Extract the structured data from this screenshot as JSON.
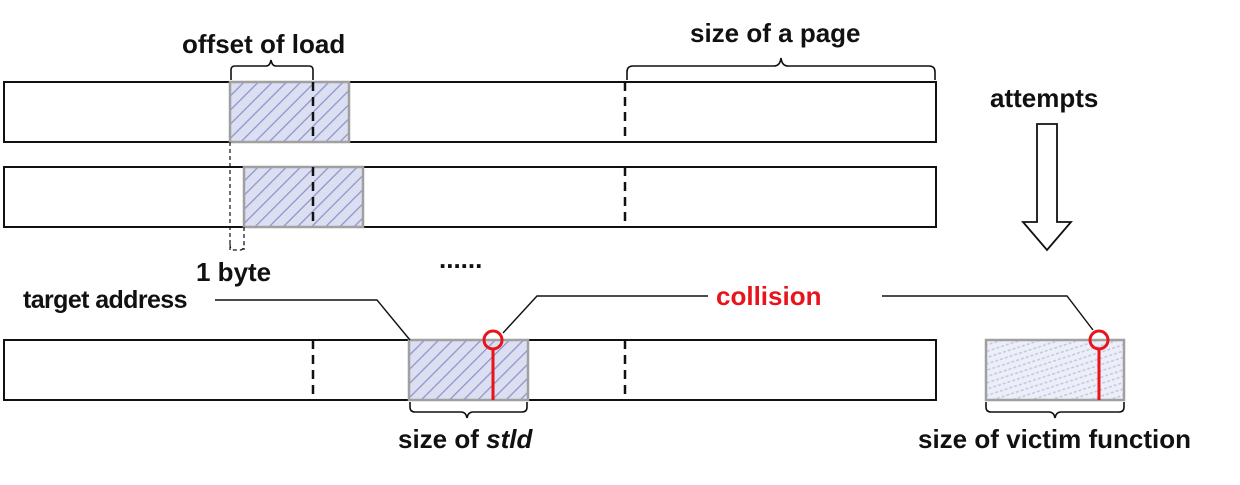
{
  "labels": {
    "offset_of_load": "offset of load",
    "size_of_a_page": "size of a page",
    "attempts": "attempts",
    "one_byte": "1 byte",
    "ellipsis": "......",
    "target_address": "target address",
    "collision": "collision",
    "size_of_stld_prefix": "size of ",
    "size_of_stld_italic": "stld",
    "size_of_victim_function": "size of victim function"
  },
  "colors": {
    "outline": "#111111",
    "hatch_fill": "#dcdff2",
    "hatch_stroke": "#8f96c8",
    "block_border": "#a0a0a0",
    "collision": "#e8141b"
  }
}
